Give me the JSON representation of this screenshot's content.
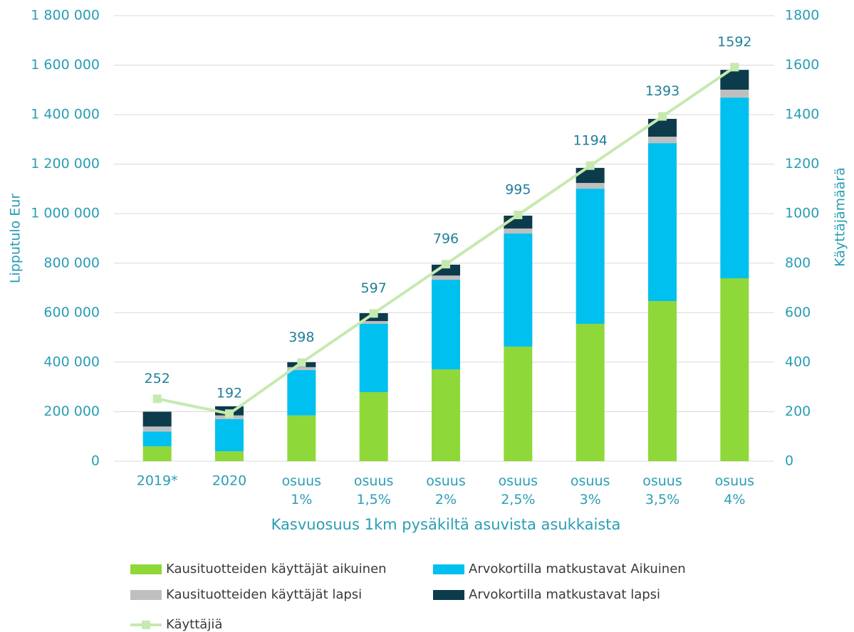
{
  "chart_data": {
    "type": "bar",
    "stacked": true,
    "xlabel": "Kasvuosuus 1km pysäkiltä asuvista asukkaista",
    "ylabel": "Lipputulo Eur",
    "y2label": "Käyttäjämäärä",
    "categories": [
      "2019*",
      "2020",
      "osuus 1%",
      "osuus 1,5%",
      "osuus 2%",
      "osuus 2,5%",
      "osuus 3%",
      "osuus 3,5%",
      "osuus 4%"
    ],
    "series": [
      {
        "name": "Kausituotteiden käyttäjät aikuinen",
        "color": "#8fd83a",
        "values": [
          60000,
          40000,
          185000,
          279000,
          371000,
          463000,
          555000,
          647000,
          739000
        ]
      },
      {
        "name": "Arvokortilla matkustavat Aikuinen",
        "color": "#00c0ef",
        "values": [
          60000,
          130000,
          183000,
          276000,
          362000,
          457000,
          546000,
          638000,
          730000
        ]
      },
      {
        "name": "Kausituotteiden käyttäjät lapsi",
        "color": "#bfbfbf",
        "values": [
          20000,
          15000,
          12000,
          11000,
          17000,
          20000,
          23000,
          26000,
          32000
        ]
      },
      {
        "name": "Arvokortilla matkustavat lapsi",
        "color": "#0c3c4c",
        "values": [
          60000,
          37000,
          20000,
          32000,
          44000,
          52000,
          61000,
          72000,
          80000
        ]
      },
      {
        "name": "Käyttäjiä",
        "color": "#c6e9b0",
        "type": "line",
        "axis": "y2",
        "values": [
          252,
          192,
          398,
          597,
          796,
          995,
          1194,
          1393,
          1592
        ]
      }
    ],
    "ylim": [
      0,
      1800000
    ],
    "yticks": [
      0,
      {
        "value": 200000,
        "label": "200 000"
      },
      {
        "value": 400000,
        "label": "400 000"
      },
      {
        "value": 600000,
        "label": "600 000"
      },
      {
        "value": 800000,
        "label": "800 000"
      },
      {
        "value": 1000000,
        "label": "1 000 000"
      },
      {
        "value": 1200000,
        "label": "1 200 000"
      },
      {
        "value": 1400000,
        "label": "1 400 000"
      },
      {
        "value": 1600000,
        "label": "1 600 000"
      },
      {
        "value": 1800000,
        "label": "1 800 000"
      }
    ],
    "y2lim": [
      0,
      1800
    ],
    "y2ticks": [
      0,
      200,
      400,
      600,
      800,
      1000,
      1200,
      1400,
      1600,
      1800
    ],
    "grid": true,
    "legend": "bottom"
  }
}
